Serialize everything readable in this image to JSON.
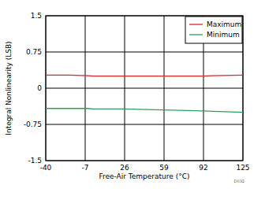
{
  "chart_data": {
    "type": "line",
    "x_label": "Free-Air Temperature (°C)",
    "y_label": "Integral Nonlinearity (LSB)",
    "annotations": [
      "D032"
    ],
    "x": [
      -40,
      -20,
      -5,
      0,
      26,
      59,
      92,
      100,
      125
    ],
    "series": [
      {
        "name": "Maximum",
        "color": "#d62728",
        "values": [
          0.27,
          0.27,
          0.26,
          0.25,
          0.25,
          0.25,
          0.25,
          0.26,
          0.27
        ]
      },
      {
        "name": "Minimum",
        "color": "#2ca05a",
        "values": [
          -0.42,
          -0.42,
          -0.42,
          -0.43,
          -0.43,
          -0.45,
          -0.47,
          -0.48,
          -0.5
        ]
      }
    ],
    "xlim": [
      -40,
      125
    ],
    "xticks": [
      -40,
      -7,
      26,
      59,
      92,
      125
    ],
    "ylim": [
      -1.5,
      1.5
    ],
    "yticks": [
      -1.5,
      -0.75,
      0,
      0.75,
      1.5
    ],
    "grid": true,
    "legend": "upper right"
  }
}
